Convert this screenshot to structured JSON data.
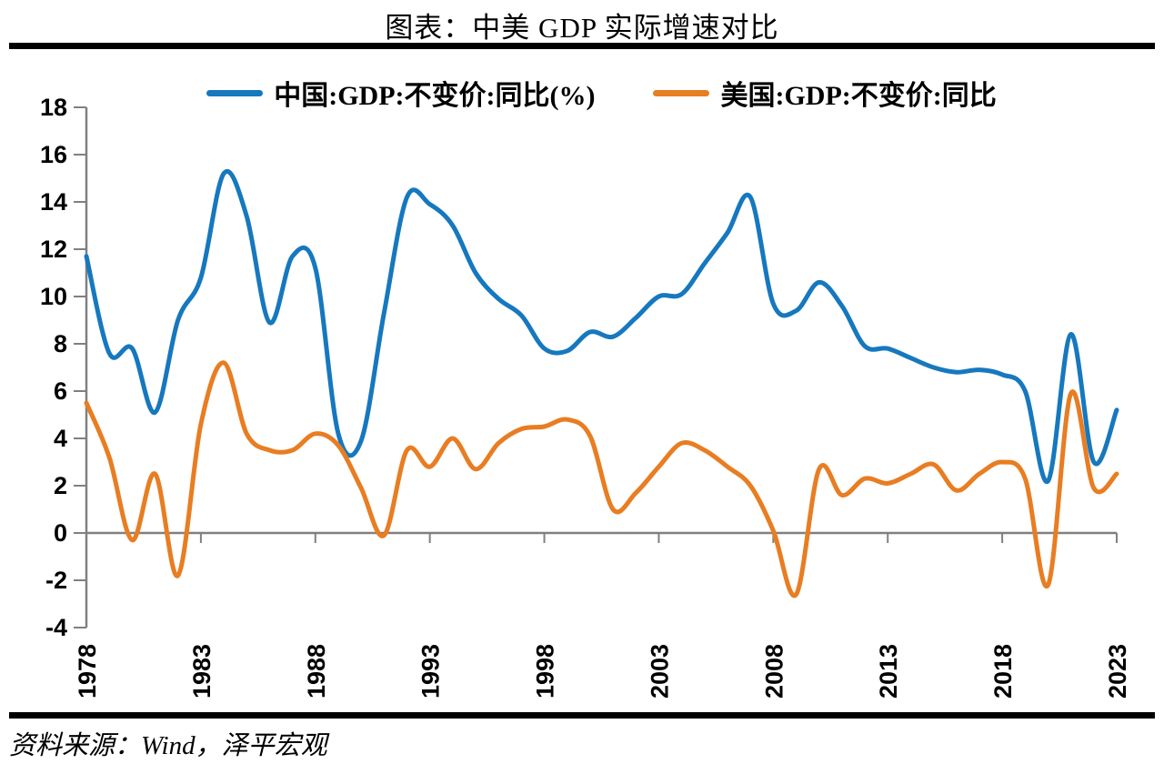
{
  "chart_data": {
    "type": "line",
    "title": "图表：中美 GDP 实际增速对比",
    "source_note": "资料来源：Wind，泽平宏观",
    "smooth": true,
    "grid": false,
    "legend_position": "top",
    "axis_color": "#808080",
    "text_color": "#000000",
    "ylim": [
      -4,
      18
    ],
    "yticks": [
      18,
      16,
      14,
      12,
      10,
      8,
      6,
      4,
      2,
      0,
      -2,
      -4
    ],
    "xticks": [
      1978,
      1983,
      1988,
      1993,
      1998,
      2003,
      2008,
      2013,
      2018,
      2023
    ],
    "x": [
      1978,
      1979,
      1980,
      1981,
      1982,
      1983,
      1984,
      1985,
      1986,
      1987,
      1988,
      1989,
      1990,
      1991,
      1992,
      1993,
      1994,
      1995,
      1996,
      1997,
      1998,
      1999,
      2000,
      2001,
      2002,
      2003,
      2004,
      2005,
      2006,
      2007,
      2008,
      2009,
      2010,
      2011,
      2012,
      2013,
      2014,
      2015,
      2016,
      2017,
      2018,
      2019,
      2020,
      2021,
      2022,
      2023
    ],
    "series": [
      {
        "name": "中国:GDP:不变价:同比(%)",
        "color": "#1678be",
        "values": [
          11.7,
          7.6,
          7.8,
          5.1,
          9.0,
          10.8,
          15.2,
          13.4,
          8.9,
          11.7,
          11.2,
          4.2,
          3.9,
          9.3,
          14.2,
          13.9,
          13.0,
          11.0,
          9.9,
          9.2,
          7.8,
          7.7,
          8.5,
          8.3,
          9.1,
          10.0,
          10.1,
          11.4,
          12.7,
          14.2,
          9.7,
          9.4,
          10.6,
          9.6,
          7.9,
          7.8,
          7.4,
          7.0,
          6.8,
          6.9,
          6.7,
          6.0,
          2.2,
          8.4,
          3.0,
          5.2
        ]
      },
      {
        "name": "美国:GDP:不变价:同比",
        "color": "#e87d22",
        "values": [
          5.5,
          3.2,
          -0.3,
          2.5,
          -1.8,
          4.6,
          7.2,
          4.2,
          3.5,
          3.5,
          4.2,
          3.7,
          1.9,
          -0.1,
          3.5,
          2.8,
          4.0,
          2.7,
          3.8,
          4.4,
          4.5,
          4.8,
          4.1,
          1.0,
          1.7,
          2.8,
          3.8,
          3.5,
          2.8,
          2.0,
          0.1,
          -2.6,
          2.7,
          1.6,
          2.3,
          2.1,
          2.5,
          2.9,
          1.8,
          2.5,
          3.0,
          2.3,
          -2.2,
          5.9,
          1.9,
          2.5
        ]
      }
    ]
  }
}
